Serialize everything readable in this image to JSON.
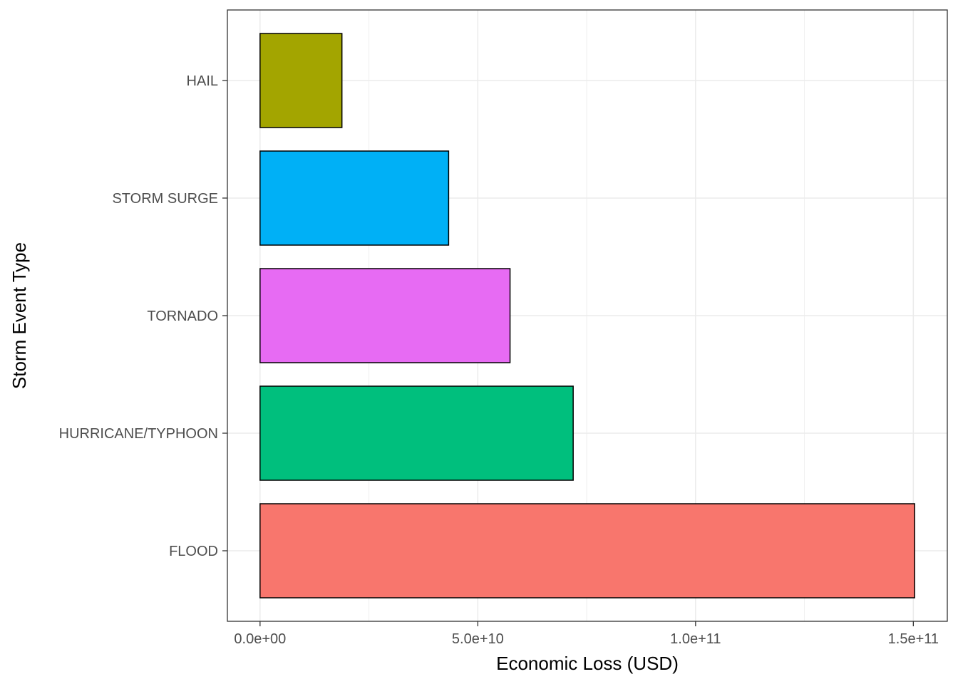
{
  "chart_data": {
    "type": "bar",
    "orientation": "horizontal",
    "categories": [
      "FLOOD",
      "HURRICANE/TYPHOON",
      "TORNADO",
      "STORM SURGE",
      "HAIL"
    ],
    "values": [
      150300000000,
      71900000000,
      57400000000,
      43300000000,
      18800000000
    ],
    "colors": [
      "#F8766D",
      "#00BF7D",
      "#E76BF3",
      "#00B0F6",
      "#A3A500"
    ],
    "xlabel": "Economic Loss (USD)",
    "ylabel": "Storm Event Type",
    "xlim": [
      -7500000000,
      157800000000
    ],
    "x_ticks": [
      0,
      50000000000,
      100000000000,
      150000000000
    ],
    "x_tick_labels": [
      "0.0e+00",
      "5.0e+10",
      "1.0e+11",
      "1.5e+11"
    ],
    "grid": true,
    "legend": "none"
  }
}
